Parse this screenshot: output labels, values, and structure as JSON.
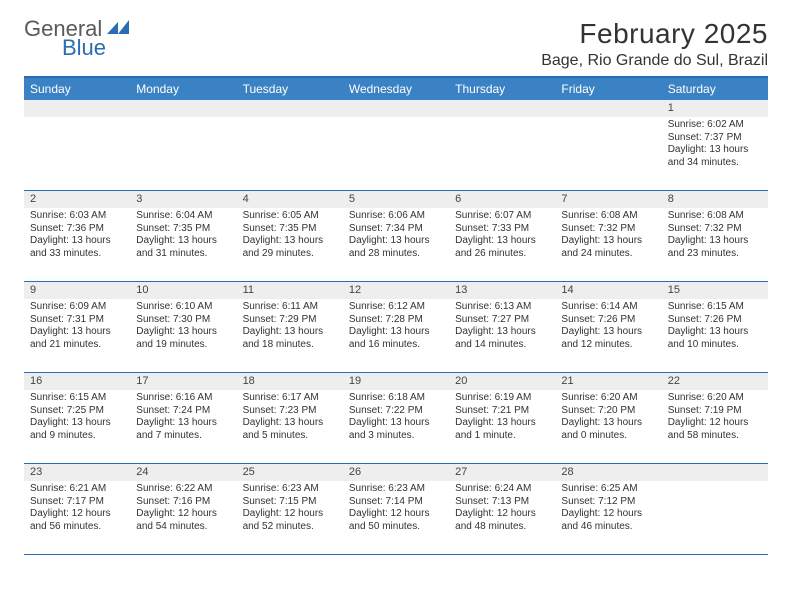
{
  "brand": {
    "name1": "General",
    "name2": "Blue",
    "color_primary": "#2a6db2"
  },
  "title": {
    "month": "February 2025",
    "location": "Bage, Rio Grande do Sul, Brazil"
  },
  "colors": {
    "header_bar": "#3b82c4",
    "rule": "#2a6db2",
    "daynum_bg": "#eeeeee",
    "text": "#333333",
    "bg": "#ffffff"
  },
  "dow": [
    "Sunday",
    "Monday",
    "Tuesday",
    "Wednesday",
    "Thursday",
    "Friday",
    "Saturday"
  ],
  "weeks": [
    [
      {
        "n": "",
        "lines": []
      },
      {
        "n": "",
        "lines": []
      },
      {
        "n": "",
        "lines": []
      },
      {
        "n": "",
        "lines": []
      },
      {
        "n": "",
        "lines": []
      },
      {
        "n": "",
        "lines": []
      },
      {
        "n": "1",
        "lines": [
          "Sunrise: 6:02 AM",
          "Sunset: 7:37 PM",
          "Daylight: 13 hours and 34 minutes."
        ]
      }
    ],
    [
      {
        "n": "2",
        "lines": [
          "Sunrise: 6:03 AM",
          "Sunset: 7:36 PM",
          "Daylight: 13 hours and 33 minutes."
        ]
      },
      {
        "n": "3",
        "lines": [
          "Sunrise: 6:04 AM",
          "Sunset: 7:35 PM",
          "Daylight: 13 hours and 31 minutes."
        ]
      },
      {
        "n": "4",
        "lines": [
          "Sunrise: 6:05 AM",
          "Sunset: 7:35 PM",
          "Daylight: 13 hours and 29 minutes."
        ]
      },
      {
        "n": "5",
        "lines": [
          "Sunrise: 6:06 AM",
          "Sunset: 7:34 PM",
          "Daylight: 13 hours and 28 minutes."
        ]
      },
      {
        "n": "6",
        "lines": [
          "Sunrise: 6:07 AM",
          "Sunset: 7:33 PM",
          "Daylight: 13 hours and 26 minutes."
        ]
      },
      {
        "n": "7",
        "lines": [
          "Sunrise: 6:08 AM",
          "Sunset: 7:32 PM",
          "Daylight: 13 hours and 24 minutes."
        ]
      },
      {
        "n": "8",
        "lines": [
          "Sunrise: 6:08 AM",
          "Sunset: 7:32 PM",
          "Daylight: 13 hours and 23 minutes."
        ]
      }
    ],
    [
      {
        "n": "9",
        "lines": [
          "Sunrise: 6:09 AM",
          "Sunset: 7:31 PM",
          "Daylight: 13 hours and 21 minutes."
        ]
      },
      {
        "n": "10",
        "lines": [
          "Sunrise: 6:10 AM",
          "Sunset: 7:30 PM",
          "Daylight: 13 hours and 19 minutes."
        ]
      },
      {
        "n": "11",
        "lines": [
          "Sunrise: 6:11 AM",
          "Sunset: 7:29 PM",
          "Daylight: 13 hours and 18 minutes."
        ]
      },
      {
        "n": "12",
        "lines": [
          "Sunrise: 6:12 AM",
          "Sunset: 7:28 PM",
          "Daylight: 13 hours and 16 minutes."
        ]
      },
      {
        "n": "13",
        "lines": [
          "Sunrise: 6:13 AM",
          "Sunset: 7:27 PM",
          "Daylight: 13 hours and 14 minutes."
        ]
      },
      {
        "n": "14",
        "lines": [
          "Sunrise: 6:14 AM",
          "Sunset: 7:26 PM",
          "Daylight: 13 hours and 12 minutes."
        ]
      },
      {
        "n": "15",
        "lines": [
          "Sunrise: 6:15 AM",
          "Sunset: 7:26 PM",
          "Daylight: 13 hours and 10 minutes."
        ]
      }
    ],
    [
      {
        "n": "16",
        "lines": [
          "Sunrise: 6:15 AM",
          "Sunset: 7:25 PM",
          "Daylight: 13 hours and 9 minutes."
        ]
      },
      {
        "n": "17",
        "lines": [
          "Sunrise: 6:16 AM",
          "Sunset: 7:24 PM",
          "Daylight: 13 hours and 7 minutes."
        ]
      },
      {
        "n": "18",
        "lines": [
          "Sunrise: 6:17 AM",
          "Sunset: 7:23 PM",
          "Daylight: 13 hours and 5 minutes."
        ]
      },
      {
        "n": "19",
        "lines": [
          "Sunrise: 6:18 AM",
          "Sunset: 7:22 PM",
          "Daylight: 13 hours and 3 minutes."
        ]
      },
      {
        "n": "20",
        "lines": [
          "Sunrise: 6:19 AM",
          "Sunset: 7:21 PM",
          "Daylight: 13 hours and 1 minute."
        ]
      },
      {
        "n": "21",
        "lines": [
          "Sunrise: 6:20 AM",
          "Sunset: 7:20 PM",
          "Daylight: 13 hours and 0 minutes."
        ]
      },
      {
        "n": "22",
        "lines": [
          "Sunrise: 6:20 AM",
          "Sunset: 7:19 PM",
          "Daylight: 12 hours and 58 minutes."
        ]
      }
    ],
    [
      {
        "n": "23",
        "lines": [
          "Sunrise: 6:21 AM",
          "Sunset: 7:17 PM",
          "Daylight: 12 hours and 56 minutes."
        ]
      },
      {
        "n": "24",
        "lines": [
          "Sunrise: 6:22 AM",
          "Sunset: 7:16 PM",
          "Daylight: 12 hours and 54 minutes."
        ]
      },
      {
        "n": "25",
        "lines": [
          "Sunrise: 6:23 AM",
          "Sunset: 7:15 PM",
          "Daylight: 12 hours and 52 minutes."
        ]
      },
      {
        "n": "26",
        "lines": [
          "Sunrise: 6:23 AM",
          "Sunset: 7:14 PM",
          "Daylight: 12 hours and 50 minutes."
        ]
      },
      {
        "n": "27",
        "lines": [
          "Sunrise: 6:24 AM",
          "Sunset: 7:13 PM",
          "Daylight: 12 hours and 48 minutes."
        ]
      },
      {
        "n": "28",
        "lines": [
          "Sunrise: 6:25 AM",
          "Sunset: 7:12 PM",
          "Daylight: 12 hours and 46 minutes."
        ]
      },
      {
        "n": "",
        "lines": []
      }
    ]
  ]
}
